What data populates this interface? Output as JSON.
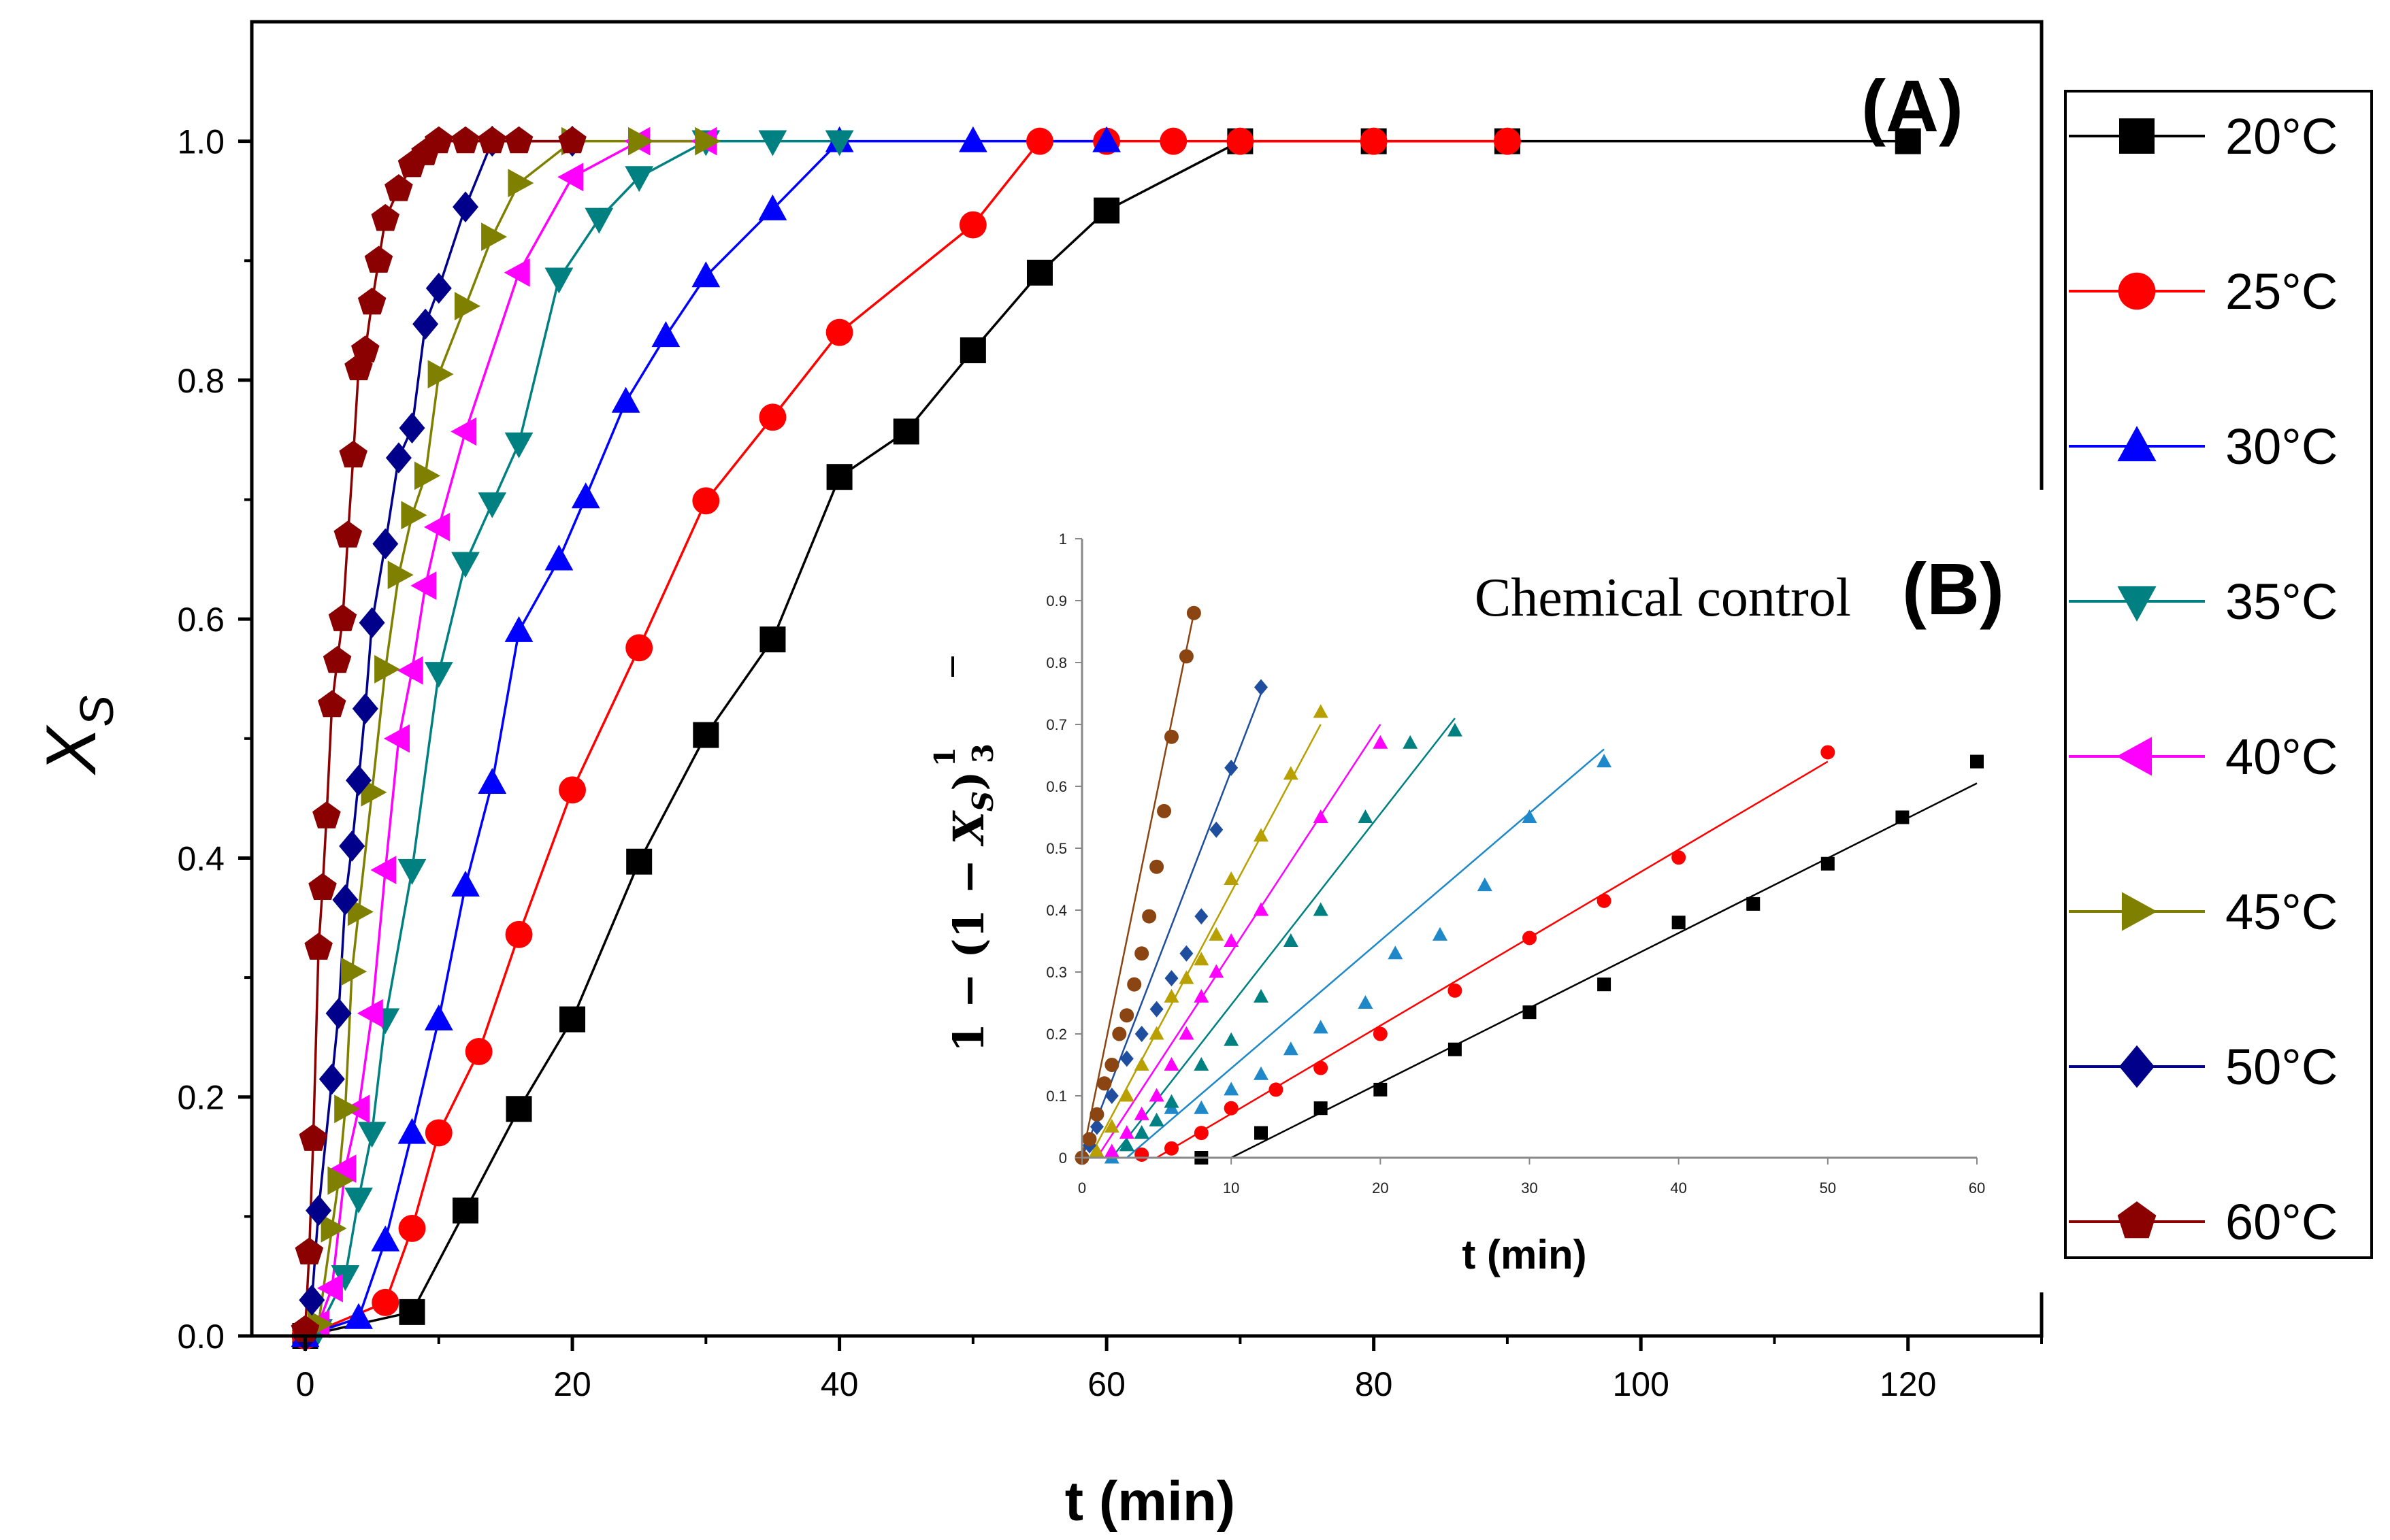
{
  "chart_data": [
    {
      "id": "A",
      "type": "line",
      "panel_label": "(A)",
      "title": "",
      "xlabel": "t (min)",
      "ylabel_main": "X",
      "ylabel_sub": "S",
      "xlim": [
        -4,
        130
      ],
      "ylim": [
        0,
        1.1
      ],
      "xticks": [
        0,
        20,
        40,
        60,
        80,
        100,
        120
      ],
      "yticks": [
        0.0,
        0.2,
        0.4,
        0.6,
        0.8,
        1.0
      ],
      "ytick_labels": [
        "0.0",
        "0.2",
        "0.4",
        "0.6",
        "0.8",
        "1.0"
      ],
      "grid": false,
      "legend_position": "right-outside",
      "series": [
        {
          "name": "20°C",
          "color": "#000000",
          "marker": "square",
          "x": [
            0,
            8,
            12,
            16,
            20,
            25,
            30,
            35,
            40,
            45,
            50,
            55,
            60,
            70,
            80,
            90,
            120
          ],
          "y": [
            0.0,
            0.02,
            0.105,
            0.19,
            0.265,
            0.397,
            0.503,
            0.583,
            0.719,
            0.757,
            0.825,
            0.89,
            0.942,
            1.0,
            1.0,
            1.0,
            1.0
          ]
        },
        {
          "name": "25°C",
          "color": "#ff0000",
          "marker": "circle",
          "x": [
            0,
            6,
            8,
            10,
            13,
            16,
            20,
            25,
            30,
            35,
            40,
            50,
            55,
            60,
            65,
            70,
            80,
            90
          ],
          "y": [
            0.0,
            0.028,
            0.09,
            0.17,
            0.238,
            0.336,
            0.457,
            0.576,
            0.699,
            0.769,
            0.84,
            0.93,
            1.0,
            1.0,
            1.0,
            1.0,
            1.0,
            1.0
          ]
        },
        {
          "name": "30°C",
          "color": "#0000ff",
          "marker": "triangle-up",
          "x": [
            0,
            4,
            6,
            8,
            10,
            12,
            14,
            16,
            19,
            21,
            24,
            27,
            30,
            35,
            40,
            50,
            60
          ],
          "y": [
            0.0,
            0.015,
            0.08,
            0.17,
            0.265,
            0.377,
            0.463,
            0.59,
            0.65,
            0.702,
            0.782,
            0.837,
            0.887,
            0.943,
            1.0,
            1.0,
            1.0
          ]
        },
        {
          "name": "35°C",
          "color": "#008080",
          "marker": "triangle-down",
          "x": [
            1,
            3,
            4,
            5,
            6,
            8,
            10,
            12,
            14,
            16,
            19,
            22,
            25,
            30,
            35,
            40
          ],
          "y": [
            0.005,
            0.05,
            0.115,
            0.17,
            0.265,
            0.39,
            0.555,
            0.647,
            0.697,
            0.747,
            0.885,
            0.935,
            0.97,
            1.0,
            1.0,
            1.0
          ]
        },
        {
          "name": "40°C",
          "color": "#ff00ff",
          "marker": "triangle-left",
          "x": [
            1,
            2,
            3,
            4,
            5,
            6,
            7,
            8,
            9,
            10,
            12,
            16,
            20,
            25,
            30
          ],
          "y": [
            0.01,
            0.04,
            0.14,
            0.19,
            0.27,
            0.39,
            0.5,
            0.557,
            0.628,
            0.677,
            0.757,
            0.89,
            0.97,
            1.0,
            1.0
          ]
        },
        {
          "name": "45°C",
          "color": "#808000",
          "marker": "triangle-right",
          "x": [
            1,
            2,
            2.5,
            3,
            3.5,
            4,
            5,
            6,
            7,
            8,
            9,
            10,
            12,
            14,
            16,
            20,
            25,
            30
          ],
          "y": [
            0.01,
            0.09,
            0.13,
            0.19,
            0.305,
            0.355,
            0.455,
            0.558,
            0.637,
            0.687,
            0.72,
            0.805,
            0.862,
            0.92,
            0.965,
            1.0,
            1.0,
            1.0
          ]
        },
        {
          "name": "50°C",
          "color": "#00008b",
          "marker": "diamond",
          "x": [
            0,
            0.5,
            1,
            2,
            2.5,
            3,
            3.5,
            4,
            4.5,
            5,
            6,
            7,
            8,
            9,
            10,
            12,
            14,
            20
          ],
          "y": [
            0.0,
            0.03,
            0.105,
            0.215,
            0.27,
            0.365,
            0.41,
            0.465,
            0.525,
            0.597,
            0.663,
            0.735,
            0.76,
            0.847,
            0.877,
            0.945,
            1.0,
            1.0
          ]
        },
        {
          "name": "60°C",
          "color": "#8b0000",
          "marker": "pentagon",
          "x": [
            0,
            0.3,
            0.6,
            1,
            1.3,
            1.6,
            2,
            2.4,
            2.8,
            3.2,
            3.6,
            4,
            4.5,
            5,
            5.5,
            6,
            7,
            8,
            9,
            10,
            12,
            14,
            16,
            20
          ],
          "y": [
            0.005,
            0.07,
            0.165,
            0.325,
            0.375,
            0.435,
            0.528,
            0.565,
            0.6,
            0.67,
            0.737,
            0.81,
            0.825,
            0.865,
            0.9,
            0.935,
            0.96,
            0.98,
            0.99,
            1.0,
            1.0,
            1.0,
            1.0,
            1.0
          ]
        }
      ]
    },
    {
      "id": "B",
      "type": "scatter",
      "panel_label": "(B)",
      "annotation": "Chemical control",
      "xlabel": "t (min)",
      "ylabel": "1 − (1 − X_S)^(1/3)",
      "ylabel_parts": {
        "prefix": "1 − (1 − ",
        "x": "X",
        "sub": "S",
        "suffix": ")",
        "exp_num": "1",
        "exp_den": "3"
      },
      "xlim": [
        0,
        60
      ],
      "ylim": [
        0,
        1
      ],
      "xticks": [
        0,
        10,
        20,
        30,
        40,
        50,
        60
      ],
      "yticks": [
        0,
        0.1,
        0.2,
        0.3,
        0.4,
        0.5,
        0.6,
        0.7,
        0.8,
        0.9,
        1
      ],
      "grid": false,
      "series": [
        {
          "name": "20°C",
          "color": "#000000",
          "marker": "square",
          "x": [
            8,
            12,
            16,
            20,
            25,
            30,
            35,
            40,
            45,
            50,
            55,
            60
          ],
          "y": [
            0.0,
            0.04,
            0.08,
            0.11,
            0.175,
            0.235,
            0.28,
            0.38,
            0.41,
            0.475,
            0.55,
            0.64
          ],
          "fit": {
            "x": [
              10,
              60
            ],
            "y": [
              0.0,
              0.605
            ]
          }
        },
        {
          "name": "25°C",
          "color": "#ff0000",
          "marker": "circle",
          "x": [
            4,
            6,
            8,
            10,
            13,
            16,
            20,
            25,
            30,
            35,
            40,
            50
          ],
          "y": [
            0.005,
            0.015,
            0.04,
            0.08,
            0.11,
            0.145,
            0.2,
            0.27,
            0.355,
            0.415,
            0.485,
            0.655
          ],
          "fit": {
            "x": [
              5,
              50
            ],
            "y": [
              0.0,
              0.64
            ]
          }
        },
        {
          "name": "30°C",
          "color": "#1e88c8",
          "marker": "triangle-up",
          "x": [
            2,
            3,
            4,
            5,
            6,
            8,
            10,
            12,
            14,
            16,
            19,
            21,
            24,
            27,
            30,
            35
          ],
          "y": [
            0.0,
            0.02,
            0.04,
            0.06,
            0.08,
            0.08,
            0.11,
            0.135,
            0.175,
            0.21,
            0.25,
            0.33,
            0.36,
            0.44,
            0.55,
            0.64
          ],
          "fit": {
            "x": [
              3,
              35
            ],
            "y": [
              0.0,
              0.66
            ]
          }
        },
        {
          "name": "35°C",
          "color": "#008080",
          "marker": "triangle-up",
          "x": [
            3,
            4,
            5,
            6,
            8,
            10,
            12,
            14,
            16,
            19,
            22,
            25
          ],
          "y": [
            0.02,
            0.04,
            0.06,
            0.09,
            0.15,
            0.19,
            0.26,
            0.35,
            0.4,
            0.55,
            0.67,
            0.69
          ],
          "fit": {
            "x": [
              2,
              25
            ],
            "y": [
              0.0,
              0.71
            ]
          }
        },
        {
          "name": "40°C",
          "color": "#ff00ff",
          "marker": "triangle-up",
          "x": [
            2,
            3,
            4,
            5,
            6,
            7,
            8,
            9,
            10,
            12,
            16,
            20
          ],
          "y": [
            0.01,
            0.04,
            0.07,
            0.1,
            0.15,
            0.2,
            0.26,
            0.3,
            0.35,
            0.4,
            0.55,
            0.67
          ],
          "fit": {
            "x": [
              1,
              20
            ],
            "y": [
              0.0,
              0.7
            ]
          }
        },
        {
          "name": "45°C",
          "color": "#b8a000",
          "marker": "triangle-up",
          "x": [
            1,
            2,
            3,
            4,
            5,
            6,
            7,
            8,
            9,
            10,
            12,
            14,
            16
          ],
          "y": [
            0.01,
            0.05,
            0.1,
            0.15,
            0.2,
            0.26,
            0.29,
            0.32,
            0.36,
            0.45,
            0.52,
            0.62,
            0.72
          ],
          "fit": {
            "x": [
              0.5,
              16
            ],
            "y": [
              0.0,
              0.7
            ]
          }
        },
        {
          "name": "50°C",
          "color": "#1f4e9e",
          "marker": "diamond",
          "x": [
            0.5,
            1,
            2,
            3,
            4,
            5,
            6,
            7,
            8,
            9,
            10,
            12
          ],
          "y": [
            0.02,
            0.05,
            0.1,
            0.16,
            0.2,
            0.24,
            0.29,
            0.33,
            0.39,
            0.53,
            0.63,
            0.76
          ],
          "fit": {
            "x": [
              0,
              12
            ],
            "y": [
              0.0,
              0.75
            ]
          }
        },
        {
          "name": "60°C",
          "color": "#8b4513",
          "marker": "circle",
          "x": [
            0,
            0.5,
            1,
            1.5,
            2,
            2.5,
            3,
            3.5,
            4,
            4.5,
            5,
            5.5,
            6,
            7,
            7.5
          ],
          "y": [
            0.0,
            0.03,
            0.07,
            0.12,
            0.15,
            0.2,
            0.23,
            0.28,
            0.33,
            0.39,
            0.47,
            0.56,
            0.68,
            0.81,
            0.88
          ],
          "fit": {
            "x": [
              0,
              7.5
            ],
            "y": [
              0.0,
              0.88
            ]
          }
        }
      ]
    }
  ]
}
